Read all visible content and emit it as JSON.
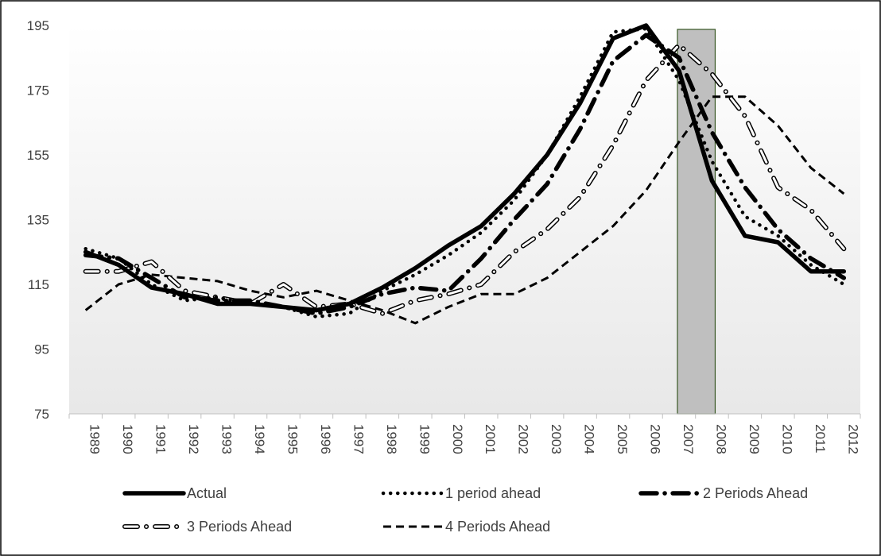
{
  "chart_data": {
    "type": "line",
    "title": "",
    "xlabel": "",
    "ylabel": "",
    "x": [
      "1989",
      "1990",
      "1991",
      "1992",
      "1993",
      "1994",
      "1995",
      "1996",
      "1997",
      "1998",
      "1999",
      "2000",
      "2001",
      "2002",
      "2003",
      "2004",
      "2005",
      "2006",
      "2007",
      "2008",
      "2009",
      "2010",
      "2011",
      "2012"
    ],
    "ylim": [
      75,
      195
    ],
    "yticks": [
      "75",
      "95",
      "115",
      "135",
      "155",
      "175",
      "195"
    ],
    "shaded_region": {
      "from": "2007",
      "to": "2008",
      "color": "#bfbfbf"
    },
    "grid": false,
    "legend_position": "bottom",
    "series": [
      {
        "name": "Actual",
        "style": "solid-thick",
        "color": "#000000",
        "values": [
          125,
          121,
          114,
          112,
          109,
          109,
          108,
          107,
          109,
          114,
          120,
          127,
          133,
          143,
          155,
          171,
          191,
          195,
          181,
          147,
          130,
          128,
          119,
          119
        ]
      },
      {
        "name": "1 period ahead",
        "style": "dotted",
        "color": "#000000",
        "values": [
          126,
          123,
          115,
          110,
          111,
          109,
          108,
          105,
          106,
          113,
          118,
          124,
          131,
          141,
          155,
          173,
          193,
          194,
          178,
          153,
          136,
          130,
          121,
          115
        ]
      },
      {
        "name": "2 Periods Ahead",
        "style": "long-dash-dot",
        "color": "#000000",
        "values": [
          124,
          123,
          117,
          111,
          110,
          110,
          108,
          106,
          108,
          112,
          114,
          113,
          123,
          135,
          146,
          163,
          184,
          192,
          185,
          162,
          145,
          132,
          123,
          117
        ]
      },
      {
        "name": "3 Periods Ahead",
        "style": "hollow-dash-dot",
        "color": "#000000",
        "values": [
          119,
          119,
          122,
          113,
          111,
          109,
          115,
          108,
          109,
          106,
          110,
          112,
          115,
          125,
          132,
          142,
          158,
          178,
          189,
          180,
          167,
          145,
          138,
          126
        ]
      },
      {
        "name": "4 Periods Ahead",
        "style": "dashed",
        "color": "#000000",
        "values": [
          107,
          115,
          118,
          117,
          116,
          113,
          111,
          113,
          110,
          107,
          103,
          108,
          112,
          112,
          117,
          125,
          133,
          144,
          159,
          173,
          173,
          164,
          151,
          143
        ]
      }
    ]
  }
}
